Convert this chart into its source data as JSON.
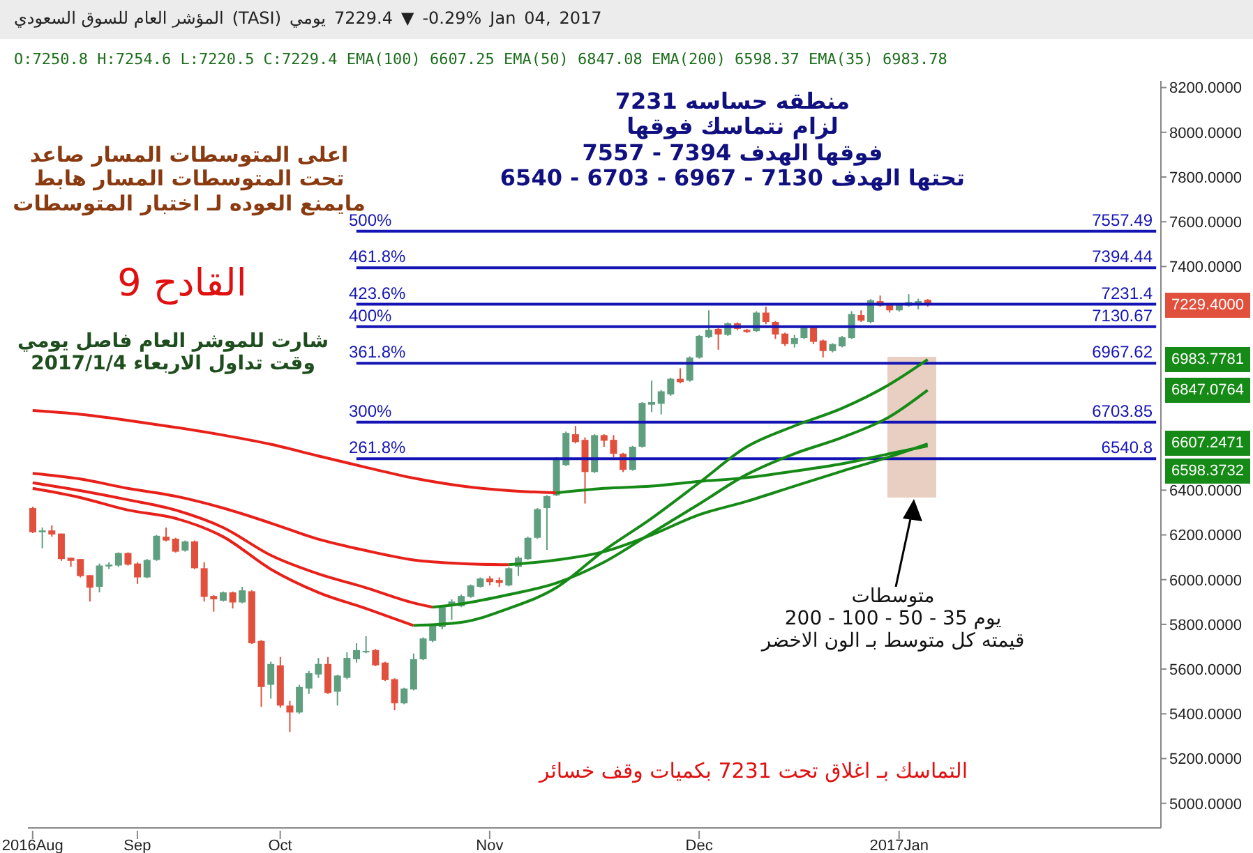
{
  "chart_data": {
    "type": "candlestick",
    "title": "المؤشر العام للسوق السعودي (TASI) يومي 7229.4 ▼ -0.29% Jan 04, 2017",
    "subtitle": "O:7250.8 H:7254.6 L:7220.5 C:7229.4 EMA(100) 6607.25 EMA(50) 6847.08 EMA(200) 6598.37 EMA(35) 6983.78",
    "categories": [
      "2016Aug",
      null,
      null,
      null,
      null,
      null,
      null,
      null,
      null,
      null,
      null,
      "Sep",
      null,
      null,
      null,
      null,
      null,
      null,
      null,
      null,
      null,
      null,
      null,
      null,
      null,
      null,
      "Oct",
      null,
      null,
      null,
      null,
      null,
      null,
      null,
      null,
      null,
      null,
      null,
      null,
      null,
      null,
      null,
      null,
      null,
      null,
      null,
      null,
      null,
      "Nov",
      null,
      null,
      null,
      null,
      null,
      null,
      null,
      null,
      null,
      null,
      null,
      null,
      null,
      null,
      null,
      null,
      null,
      null,
      null,
      null,
      null,
      "Dec",
      null,
      null,
      null,
      null,
      null,
      null,
      null,
      null,
      null,
      null,
      null,
      null,
      null,
      null,
      null,
      null,
      null,
      null,
      null,
      null,
      "2017Jan",
      null,
      null,
      null,
      null,
      null,
      null,
      null,
      null,
      null,
      null,
      null,
      null,
      null,
      null,
      null,
      null,
      null,
      null,
      null,
      null,
      null,
      null,
      null,
      null,
      null,
      null,
      null
    ],
    "ohlc": [
      [
        6320,
        6326,
        6208,
        6212
      ],
      [
        6212,
        6233,
        6140,
        6220
      ],
      [
        6220,
        6243,
        6192,
        6202
      ],
      [
        6206,
        6206,
        6084,
        6092
      ],
      [
        6098,
        6098,
        6057,
        6084
      ],
      [
        6092,
        6092,
        6010,
        6016
      ],
      [
        6020,
        6020,
        5902,
        5964
      ],
      [
        5968,
        6072,
        5943,
        6063
      ],
      [
        6059,
        6078,
        6047,
        6067
      ],
      [
        6063,
        6122,
        6057,
        6119
      ],
      [
        6119,
        6122,
        6063,
        6067
      ],
      [
        6072,
        6078,
        5981,
        6010
      ],
      [
        6010,
        6092,
        6006,
        6088
      ],
      [
        6088,
        6200,
        6084,
        6196
      ],
      [
        6192,
        6233,
        6171,
        6175
      ],
      [
        6183,
        6187,
        6121,
        6125
      ],
      [
        6130,
        6175,
        6125,
        6171
      ],
      [
        6171,
        6175,
        6047,
        6051
      ],
      [
        6051,
        6078,
        5902,
        5923
      ],
      [
        5927,
        5931,
        5857,
        5912
      ],
      [
        5906,
        5947,
        5902,
        5943
      ],
      [
        5943,
        5947,
        5871,
        5898
      ],
      [
        5898,
        5968,
        5894,
        5952
      ],
      [
        5948,
        5952,
        5712,
        5716
      ],
      [
        5726,
        5730,
        5431,
        5520
      ],
      [
        5530,
        5633,
        5468,
        5623
      ],
      [
        5617,
        5654,
        5427,
        5437
      ],
      [
        5437,
        5458,
        5319,
        5406
      ],
      [
        5406,
        5530,
        5400,
        5520
      ],
      [
        5513,
        5592,
        5489,
        5582
      ],
      [
        5576,
        5650,
        5561,
        5623
      ],
      [
        5623,
        5654,
        5489,
        5493
      ],
      [
        5499,
        5575,
        5437,
        5571
      ],
      [
        5561,
        5675,
        5555,
        5650
      ],
      [
        5644,
        5716,
        5629,
        5685
      ],
      [
        5679,
        5747,
        5671,
        5681
      ],
      [
        5685,
        5690,
        5613,
        5617
      ],
      [
        5629,
        5633,
        5547,
        5551
      ],
      [
        5555,
        5559,
        5416,
        5447
      ],
      [
        5447,
        5517,
        5443,
        5513
      ],
      [
        5509,
        5670,
        5505,
        5644
      ],
      [
        5644,
        5742,
        5640,
        5737
      ],
      [
        5726,
        5800,
        5720,
        5794
      ],
      [
        5788,
        5886,
        5778,
        5877
      ],
      [
        5881,
        5912,
        5820,
        5902
      ],
      [
        5881,
        5933,
        5877,
        5927
      ],
      [
        5923,
        5978,
        5919,
        5974
      ],
      [
        5968,
        6010,
        5964,
        6005
      ],
      [
        6005,
        6016,
        5974,
        5989
      ],
      [
        5999,
        6010,
        5968,
        5985
      ],
      [
        5974,
        6055,
        5970,
        6051
      ],
      [
        6057,
        6104,
        6016,
        6098
      ],
      [
        6092,
        6192,
        6088,
        6187
      ],
      [
        6187,
        6320,
        6183,
        6315
      ],
      [
        6320,
        6378,
        6133,
        6373
      ],
      [
        6377,
        6548,
        6373,
        6543
      ],
      [
        6512,
        6662,
        6508,
        6656
      ],
      [
        6650,
        6687,
        6609,
        6615
      ],
      [
        6625,
        6636,
        6340,
        6481
      ],
      [
        6481,
        6650,
        6477,
        6646
      ],
      [
        6646,
        6650,
        6594,
        6621
      ],
      [
        6625,
        6646,
        6547,
        6563
      ],
      [
        6563,
        6567,
        6481,
        6491
      ],
      [
        6491,
        6598,
        6487,
        6594
      ],
      [
        6594,
        6794,
        6590,
        6790
      ],
      [
        6782,
        6890,
        6749,
        6794
      ],
      [
        6786,
        6848,
        6739,
        6842
      ],
      [
        6828,
        6903,
        6822,
        6898
      ],
      [
        6898,
        6945,
        6878,
        6883
      ],
      [
        6890,
        6998,
        6885,
        6993
      ],
      [
        6993,
        7094,
        6988,
        7090
      ],
      [
        7084,
        7204,
        7080,
        7117
      ],
      [
        7121,
        7125,
        7028,
        7096
      ],
      [
        7094,
        7150,
        7090,
        7146
      ],
      [
        7146,
        7150,
        7115,
        7121
      ],
      [
        7117,
        7121,
        7103,
        7107
      ],
      [
        7111,
        7200,
        7107,
        7194
      ],
      [
        7194,
        7220,
        7142,
        7152
      ],
      [
        7152,
        7156,
        7076,
        7096
      ],
      [
        7100,
        7104,
        7045,
        7053
      ],
      [
        7053,
        7094,
        7038,
        7080
      ],
      [
        7080,
        7136,
        7076,
        7131
      ],
      [
        7131,
        7136,
        7053,
        7063
      ],
      [
        7069,
        7073,
        6993,
        7022
      ],
      [
        7022,
        7057,
        7016,
        7053
      ],
      [
        7043,
        7090,
        7038,
        7084
      ],
      [
        7080,
        7200,
        7076,
        7187
      ],
      [
        7183,
        7204,
        7152,
        7158
      ],
      [
        7152,
        7254,
        7146,
        7249
      ],
      [
        7245,
        7270,
        7220,
        7225
      ],
      [
        7231,
        7235,
        7194,
        7204
      ],
      [
        7204,
        7233,
        7198,
        7229
      ],
      [
        7225,
        7276,
        7220,
        7241
      ],
      [
        7229,
        7256,
        7208,
        7245
      ],
      [
        7250.8,
        7254.6,
        7220.5,
        7229.4
      ],
      null,
      null,
      null,
      null,
      null,
      null,
      null,
      null,
      null,
      null,
      null,
      null,
      null,
      null,
      null,
      null,
      null,
      null,
      null,
      null,
      null,
      null,
      null,
      null
    ],
    "series": [
      {
        "type": "line",
        "color": "#e8201a",
        "values": [
          6756,
          null,
          null,
          null,
          null,
          6739,
          null,
          null,
          null,
          null,
          6712,
          null,
          null,
          null,
          null,
          6681,
          null,
          null,
          null,
          null,
          6646,
          null,
          null,
          null,
          null,
          6605,
          null,
          null,
          null,
          null,
          6553,
          null,
          null,
          null,
          null,
          6502,
          null,
          null,
          null,
          null,
          6454,
          null,
          null,
          null,
          null,
          6419,
          null,
          null,
          null,
          null,
          6398,
          null,
          null,
          null,
          null,
          6388,
          null,
          null,
          null,
          null,
          null,
          null,
          null,
          null,
          null,
          null,
          null,
          null,
          null,
          null,
          null,
          null,
          null,
          null,
          null,
          null,
          null,
          null,
          null,
          null,
          null,
          null,
          null,
          null,
          null,
          null,
          null,
          null,
          null,
          null,
          null,
          null,
          null,
          null,
          null,
          null,
          null,
          null,
          null,
          null,
          null,
          null,
          null,
          null,
          null,
          null,
          null,
          null,
          null,
          null,
          null,
          null,
          null,
          null,
          null,
          null,
          null,
          null,
          null
        ]
      },
      {
        "type": "line",
        "color": "#168a16",
        "values": [
          null,
          null,
          null,
          null,
          null,
          null,
          null,
          null,
          null,
          null,
          null,
          null,
          null,
          null,
          null,
          null,
          null,
          null,
          null,
          null,
          null,
          null,
          null,
          null,
          null,
          null,
          null,
          null,
          null,
          null,
          null,
          null,
          null,
          null,
          null,
          null,
          null,
          null,
          null,
          null,
          null,
          null,
          null,
          null,
          null,
          null,
          null,
          null,
          null,
          null,
          null,
          null,
          null,
          null,
          null,
          6388,
          null,
          null,
          null,
          null,
          6408,
          null,
          null,
          null,
          null,
          6418,
          null,
          null,
          null,
          null,
          6439,
          null,
          null,
          null,
          null,
          6456,
          null,
          null,
          null,
          null,
          6485,
          null,
          null,
          null,
          null,
          6518,
          null,
          null,
          null,
          null,
          6563,
          null,
          null,
          null,
          6598,
          null,
          null,
          null,
          null,
          null,
          null,
          null,
          null,
          null,
          null,
          null,
          null,
          null,
          null,
          null,
          null,
          null,
          null,
          null,
          null,
          null,
          null,
          null,
          null
        ]
      },
      {
        "type": "line",
        "color": "#e8201a",
        "values": [
          6475,
          null,
          null,
          null,
          null,
          6450,
          null,
          null,
          null,
          null,
          6408,
          null,
          null,
          null,
          null,
          6373,
          null,
          null,
          null,
          null,
          6320,
          null,
          null,
          null,
          null,
          6253,
          null,
          null,
          null,
          null,
          6181,
          null,
          null,
          null,
          null,
          6130,
          null,
          null,
          null,
          null,
          6088,
          null,
          null,
          null,
          null,
          6072,
          null,
          null,
          null,
          null,
          6067,
          null,
          null,
          null,
          null,
          null,
          null,
          null,
          null,
          null,
          null,
          null,
          null,
          null,
          null,
          null,
          null,
          null,
          null,
          null,
          null,
          null,
          null,
          null,
          null,
          null,
          null,
          null,
          null,
          null,
          null,
          null,
          null,
          null,
          null,
          null,
          null,
          null,
          null,
          null,
          null,
          null,
          null,
          null,
          null,
          null,
          null,
          null,
          null,
          null,
          null,
          null,
          null,
          null,
          null,
          null,
          null,
          null,
          null,
          null,
          null,
          null,
          null,
          null,
          null,
          null,
          null,
          null,
          null
        ]
      },
      {
        "type": "line",
        "color": "#168a16",
        "values": [
          null,
          null,
          null,
          null,
          null,
          null,
          null,
          null,
          null,
          null,
          null,
          null,
          null,
          null,
          null,
          null,
          null,
          null,
          null,
          null,
          null,
          null,
          null,
          null,
          null,
          null,
          null,
          null,
          null,
          null,
          null,
          null,
          null,
          null,
          null,
          null,
          null,
          null,
          null,
          null,
          null,
          null,
          null,
          null,
          null,
          null,
          null,
          null,
          null,
          null,
          6067,
          null,
          null,
          null,
          null,
          6088,
          null,
          null,
          null,
          null,
          6125,
          null,
          null,
          null,
          null,
          6200,
          null,
          null,
          null,
          null,
          6290,
          null,
          null,
          null,
          null,
          6350,
          null,
          null,
          null,
          null,
          6418,
          null,
          null,
          null,
          null,
          6485,
          null,
          null,
          null,
          null,
          6549,
          null,
          null,
          null,
          6607,
          null,
          null,
          null,
          null,
          null,
          null,
          null,
          null,
          null,
          null,
          null,
          null,
          null,
          null,
          null,
          null,
          null,
          null,
          null,
          null,
          null,
          null,
          null,
          null
        ]
      },
      {
        "type": "line",
        "color": "#e8201a",
        "values": [
          6433,
          null,
          null,
          null,
          null,
          6398,
          null,
          null,
          null,
          null,
          6357,
          null,
          null,
          null,
          null,
          6311,
          null,
          null,
          null,
          null,
          6233,
          null,
          null,
          null,
          null,
          6109,
          null,
          null,
          null,
          null,
          6026,
          null,
          null,
          null,
          null,
          5964,
          null,
          null,
          null,
          null,
          5896,
          null,
          5877,
          null,
          null,
          null,
          null,
          null,
          null,
          null,
          null,
          null,
          null,
          null,
          null,
          null,
          null,
          null,
          null,
          null,
          null,
          null,
          null,
          null,
          null,
          null,
          null,
          null,
          null,
          null,
          null,
          null,
          null,
          null,
          null,
          null,
          null,
          null,
          null,
          null,
          null,
          null,
          null,
          null,
          null,
          null,
          null,
          null,
          null,
          null,
          null,
          null,
          null,
          null,
          null,
          null,
          null,
          null,
          null,
          null,
          null,
          null,
          null,
          null,
          null,
          null,
          null,
          null,
          null,
          null,
          null,
          null,
          null,
          null,
          null,
          null,
          null,
          null,
          null
        ]
      },
      {
        "type": "line",
        "color": "#168a16",
        "values": [
          null,
          null,
          null,
          null,
          null,
          null,
          null,
          null,
          null,
          null,
          null,
          null,
          null,
          null,
          null,
          null,
          null,
          null,
          null,
          null,
          null,
          null,
          null,
          null,
          null,
          null,
          null,
          null,
          null,
          null,
          null,
          null,
          null,
          null,
          null,
          null,
          null,
          null,
          null,
          null,
          null,
          null,
          5877,
          null,
          null,
          5892,
          null,
          null,
          null,
          null,
          5933,
          null,
          null,
          null,
          null,
          5985,
          null,
          null,
          null,
          null,
          6078,
          null,
          null,
          null,
          null,
          6208,
          null,
          null,
          null,
          null,
          6338,
          null,
          null,
          null,
          null,
          6470,
          null,
          null,
          null,
          null,
          6563,
          null,
          null,
          null,
          null,
          6635,
          null,
          null,
          null,
          null,
          6728,
          null,
          null,
          null,
          6847,
          null,
          null,
          null,
          null,
          null,
          null,
          null,
          null,
          null,
          null,
          null,
          null,
          null,
          null,
          null,
          null,
          null,
          null,
          null,
          null,
          null,
          null,
          null,
          null
        ]
      },
      {
        "type": "line",
        "color": "#e8201a",
        "values": [
          6408,
          null,
          null,
          null,
          null,
          6367,
          null,
          null,
          null,
          null,
          6311,
          null,
          null,
          null,
          null,
          6274,
          null,
          null,
          null,
          null,
          6192,
          null,
          null,
          null,
          null,
          6047,
          null,
          null,
          null,
          null,
          5943,
          null,
          null,
          null,
          null,
          5871,
          null,
          null,
          null,
          null,
          5795,
          null,
          null,
          null,
          null,
          null,
          null,
          null,
          null,
          null,
          null,
          null,
          null,
          null,
          null,
          null,
          null,
          null,
          null,
          null,
          null,
          null,
          null,
          null,
          null,
          null,
          null,
          null,
          null,
          null,
          null,
          null,
          null,
          null,
          null,
          null,
          null,
          null,
          null,
          null,
          null,
          null,
          null,
          null,
          null,
          null,
          null,
          null,
          null,
          null,
          null,
          null,
          null,
          null,
          null,
          null,
          null,
          null,
          null,
          null,
          null,
          null,
          null,
          null,
          null,
          null,
          null,
          null,
          null,
          null,
          null,
          null,
          null,
          null,
          null,
          null,
          null,
          null,
          null
        ]
      },
      {
        "type": "line",
        "color": "#168a16",
        "values": [
          null,
          null,
          null,
          null,
          null,
          null,
          null,
          null,
          null,
          null,
          null,
          null,
          null,
          null,
          null,
          null,
          null,
          null,
          null,
          null,
          null,
          null,
          null,
          null,
          null,
          null,
          null,
          null,
          null,
          null,
          null,
          null,
          null,
          null,
          null,
          null,
          null,
          null,
          null,
          null,
          5795,
          null,
          null,
          null,
          null,
          5809,
          null,
          null,
          null,
          null,
          5871,
          null,
          null,
          null,
          null,
          5964,
          null,
          null,
          null,
          null,
          6130,
          null,
          null,
          null,
          null,
          6274,
          null,
          null,
          null,
          null,
          6433,
          null,
          null,
          null,
          null,
          6594,
          null,
          null,
          null,
          null,
          6687,
          null,
          null,
          null,
          null,
          6766,
          null,
          null,
          null,
          null,
          6873,
          null,
          null,
          null,
          6984,
          null,
          null,
          null,
          null,
          null,
          null,
          null,
          null,
          null,
          null,
          null,
          null,
          null,
          null,
          null,
          null,
          null,
          null,
          null,
          null,
          null,
          null,
          null,
          null
        ]
      }
    ],
    "ylim": [
      4890,
      8230
    ],
    "yticks": [
      {
        "value": 5000,
        "label": "5000.0000"
      },
      {
        "value": 5200,
        "label": "5200.0000"
      },
      {
        "value": 5400,
        "label": "5400.0000"
      },
      {
        "value": 5600,
        "label": "5600.0000"
      },
      {
        "value": 5800,
        "label": "5800.0000"
      },
      {
        "value": 6000,
        "label": "6000.0000"
      },
      {
        "value": 6200,
        "label": "6200.0000"
      },
      {
        "value": 6400,
        "label": "6400.0000"
      },
      {
        "value": 7400,
        "label": "7400.0000"
      },
      {
        "value": 7600,
        "label": "7600.0000"
      },
      {
        "value": 7800,
        "label": "7800.0000"
      },
      {
        "value": 8000,
        "label": "8000.0000"
      },
      {
        "value": 8200,
        "label": "8200.0000"
      }
    ],
    "ref_lines": [
      {
        "axis": "y",
        "value": 7557.49,
        "label": "7557.49",
        "color": "#1414b4"
      },
      {
        "axis": "y",
        "value": 7394.44,
        "label": "7394.44",
        "color": "#1414b4"
      },
      {
        "axis": "y",
        "value": 7231.4,
        "label": "7231.4",
        "color": "#1414b4"
      },
      {
        "axis": "y",
        "value": 7130.67,
        "label": "7130.67",
        "color": "#1414b4"
      },
      {
        "axis": "y",
        "value": 6967.62,
        "label": "6967.62",
        "color": "#1414b4"
      },
      {
        "axis": "y",
        "value": 6703.85,
        "label": "6703.85",
        "color": "#1414b4"
      },
      {
        "axis": "y",
        "value": 6540.8,
        "label": "6540.8",
        "color": "#1414b4"
      }
    ],
    "annotations": [
      "اعلى المتوسطات المسار صاعد\nتحت المتوسطات المسار هابط\nمايمنع العوده لـ اختبار المتوسطات",
      "القادح 9",
      "شارت للموشر العام فاصل يومي\nوقت تداول الاربعاء 2017/1/4",
      "منطقه حساسه 7231\nلزام نتماسك فوقها\nفوقها الهدف 7394 - 7557\nتحتها الهدف 7130 - 6967 - 6703 - 6540",
      "متوسطات\nيوم 35 - 50 - 100 - 200\nقيمته كل متوسط بـ الون الاخضر",
      "التماسك بـ اغلاق تحت 7231 بكميات وقف خسائر",
      {
        "text": "500%",
        "y": 7557.49
      },
      {
        "text": "461.8%",
        "y": 7394.44
      },
      {
        "text": "423.6%",
        "y": 7231.4
      },
      {
        "text": "400%",
        "y": 7130.67
      },
      {
        "text": "361.8%",
        "y": 6967.62
      },
      {
        "text": "300%",
        "y": 6703.85
      },
      {
        "text": "261.8%",
        "y": 6540.8
      },
      "7229.4000",
      "6983.7781",
      "6847.0764",
      "6607.2471",
      "6598.3732"
    ]
  }
}
